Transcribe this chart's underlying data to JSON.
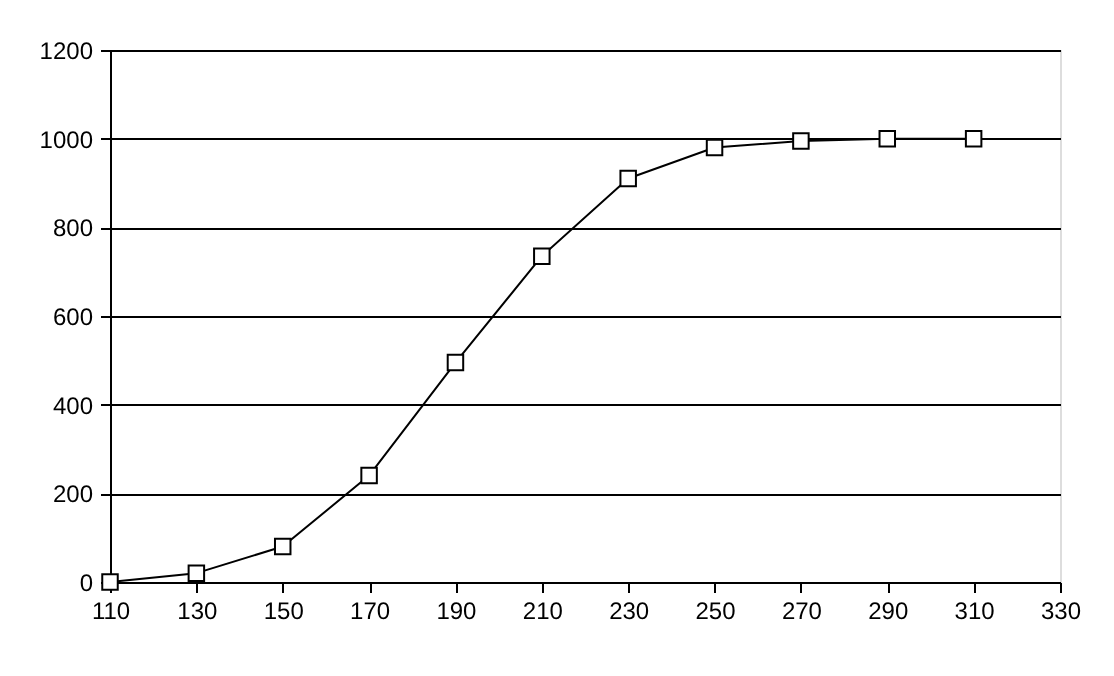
{
  "chart_data": {
    "type": "line",
    "x": [
      110,
      130,
      150,
      170,
      190,
      210,
      230,
      250,
      270,
      290,
      310
    ],
    "series": [
      {
        "color": "#000000",
        "values": [
          0,
          20,
          80,
          240,
          495,
          735,
          910,
          980,
          995,
          1000,
          1000
        ]
      }
    ],
    "xlim": [
      110,
      330
    ],
    "xticks": [
      110,
      130,
      150,
      170,
      190,
      210,
      230,
      250,
      270,
      290,
      310,
      330
    ],
    "ylim": [
      0,
      1200
    ],
    "yticks": [
      0,
      200,
      400,
      600,
      800,
      1000,
      1200
    ],
    "grid": "y",
    "marker": "square",
    "line_style": "solid"
  }
}
